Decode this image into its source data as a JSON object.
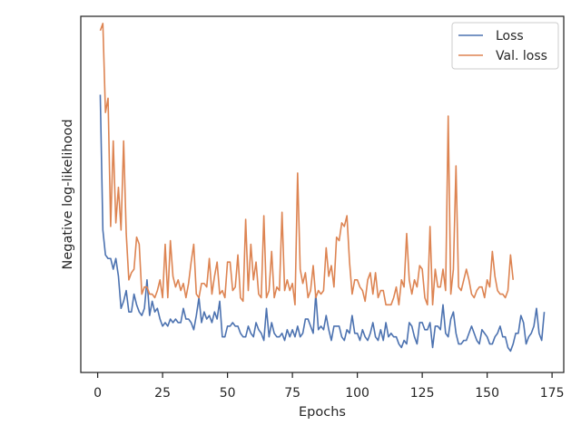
{
  "chart_data": {
    "type": "line",
    "title": "",
    "xlabel": "Epochs",
    "ylabel": "Negative log-likelihood",
    "xlim": [
      -6.5,
      179.5
    ],
    "ylim": [
      0.0,
      1.0
    ],
    "xticks": [
      0,
      25,
      50,
      75,
      100,
      125,
      150,
      175
    ],
    "xtick_labels": [
      "0",
      "25",
      "50",
      "75",
      "100",
      "125",
      "150",
      "175"
    ],
    "yticks_shown": false,
    "grid": false,
    "legend": {
      "position": "top-right",
      "entries": [
        "Loss",
        "Val. loss"
      ]
    },
    "x_start": 1,
    "series": [
      {
        "name": "Loss",
        "color": "#4c72b0",
        "values": [
          0.78,
          0.4,
          0.33,
          0.32,
          0.32,
          0.29,
          0.32,
          0.27,
          0.18,
          0.2,
          0.23,
          0.17,
          0.17,
          0.22,
          0.19,
          0.17,
          0.16,
          0.18,
          0.26,
          0.16,
          0.2,
          0.17,
          0.18,
          0.15,
          0.13,
          0.14,
          0.13,
          0.15,
          0.14,
          0.15,
          0.14,
          0.14,
          0.18,
          0.15,
          0.15,
          0.14,
          0.12,
          0.16,
          0.21,
          0.14,
          0.17,
          0.15,
          0.16,
          0.14,
          0.17,
          0.15,
          0.2,
          0.1,
          0.1,
          0.13,
          0.13,
          0.14,
          0.13,
          0.13,
          0.11,
          0.1,
          0.1,
          0.13,
          0.11,
          0.1,
          0.14,
          0.12,
          0.11,
          0.09,
          0.18,
          0.1,
          0.14,
          0.11,
          0.1,
          0.1,
          0.11,
          0.09,
          0.12,
          0.1,
          0.12,
          0.1,
          0.13,
          0.1,
          0.11,
          0.15,
          0.15,
          0.13,
          0.11,
          0.22,
          0.12,
          0.13,
          0.12,
          0.16,
          0.12,
          0.09,
          0.13,
          0.13,
          0.13,
          0.1,
          0.09,
          0.12,
          0.11,
          0.16,
          0.11,
          0.11,
          0.09,
          0.12,
          0.1,
          0.09,
          0.11,
          0.14,
          0.1,
          0.09,
          0.12,
          0.09,
          0.14,
          0.1,
          0.11,
          0.1,
          0.1,
          0.08,
          0.07,
          0.09,
          0.08,
          0.14,
          0.13,
          0.1,
          0.08,
          0.14,
          0.14,
          0.12,
          0.12,
          0.14,
          0.07,
          0.13,
          0.13,
          0.12,
          0.19,
          0.11,
          0.1,
          0.15,
          0.17,
          0.11,
          0.08,
          0.08,
          0.09,
          0.09,
          0.11,
          0.13,
          0.11,
          0.09,
          0.08,
          0.12,
          0.11,
          0.1,
          0.08,
          0.08,
          0.1,
          0.11,
          0.13,
          0.1,
          0.1,
          0.07,
          0.06,
          0.08,
          0.11,
          0.11,
          0.16,
          0.14,
          0.08,
          0.1,
          0.11,
          0.13,
          0.18,
          0.11,
          0.09,
          0.17
        ]
      },
      {
        "name": "Val. loss",
        "color": "#dd8452",
        "values": [
          0.96,
          0.98,
          0.73,
          0.77,
          0.41,
          0.65,
          0.42,
          0.52,
          0.4,
          0.65,
          0.39,
          0.26,
          0.28,
          0.29,
          0.38,
          0.36,
          0.22,
          0.24,
          0.24,
          0.22,
          0.22,
          0.21,
          0.23,
          0.26,
          0.21,
          0.36,
          0.21,
          0.37,
          0.27,
          0.24,
          0.26,
          0.23,
          0.25,
          0.21,
          0.25,
          0.31,
          0.36,
          0.22,
          0.21,
          0.25,
          0.25,
          0.24,
          0.32,
          0.22,
          0.27,
          0.31,
          0.22,
          0.23,
          0.21,
          0.31,
          0.31,
          0.23,
          0.24,
          0.33,
          0.21,
          0.2,
          0.43,
          0.23,
          0.36,
          0.26,
          0.31,
          0.22,
          0.21,
          0.44,
          0.21,
          0.23,
          0.34,
          0.21,
          0.24,
          0.23,
          0.45,
          0.23,
          0.26,
          0.23,
          0.25,
          0.19,
          0.56,
          0.29,
          0.25,
          0.28,
          0.21,
          0.23,
          0.3,
          0.21,
          0.23,
          0.22,
          0.23,
          0.35,
          0.27,
          0.3,
          0.24,
          0.38,
          0.37,
          0.42,
          0.41,
          0.44,
          0.31,
          0.22,
          0.26,
          0.26,
          0.24,
          0.23,
          0.2,
          0.26,
          0.28,
          0.22,
          0.28,
          0.21,
          0.23,
          0.23,
          0.19,
          0.19,
          0.19,
          0.21,
          0.24,
          0.19,
          0.26,
          0.24,
          0.39,
          0.26,
          0.22,
          0.26,
          0.24,
          0.3,
          0.29,
          0.21,
          0.19,
          0.41,
          0.19,
          0.29,
          0.24,
          0.24,
          0.29,
          0.23,
          0.72,
          0.22,
          0.29,
          0.58,
          0.24,
          0.23,
          0.26,
          0.29,
          0.26,
          0.22,
          0.21,
          0.23,
          0.24,
          0.24,
          0.21,
          0.26,
          0.24,
          0.34,
          0.27,
          0.23,
          0.22,
          0.22,
          0.21,
          0.23,
          0.33,
          0.26
        ]
      }
    ]
  }
}
